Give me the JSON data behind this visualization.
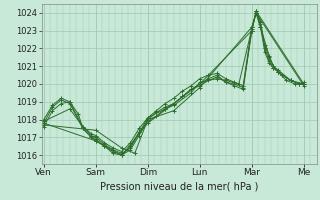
{
  "bg_color": "#c8e8d8",
  "plot_bg_color": "#c8e8d8",
  "grid_color": "#a0c8b0",
  "line_color": "#2d6e2d",
  "marker_color": "#2d6e2d",
  "title": "Pression niveau de la mer( hPa )",
  "ylim": [
    1015.5,
    1024.5
  ],
  "yticks": [
    1016,
    1017,
    1018,
    1019,
    1020,
    1021,
    1022,
    1023,
    1024
  ],
  "x_day_labels": [
    "Ven",
    "Sam",
    "Dim",
    "Lun",
    "Mar",
    "Me"
  ],
  "x_day_positions": [
    0,
    48,
    96,
    144,
    192,
    240
  ],
  "xlim": [
    -2,
    252
  ],
  "series": [
    [
      0,
      1017.8,
      8,
      1018.7,
      16,
      1019.1,
      24,
      1018.9,
      36,
      1017.5,
      44,
      1017.0,
      48,
      1016.8,
      56,
      1016.5,
      64,
      1016.2,
      72,
      1016.0,
      80,
      1016.5,
      88,
      1017.3,
      96,
      1017.9,
      104,
      1018.2,
      112,
      1018.6,
      120,
      1018.9,
      128,
      1019.3,
      136,
      1019.7,
      144,
      1020.0,
      152,
      1020.3,
      160,
      1020.5,
      168,
      1020.1,
      176,
      1019.9,
      184,
      1019.7,
      192,
      1023.0,
      196,
      1024.1,
      200,
      1023.5,
      204,
      1022.2,
      208,
      1021.5,
      212,
      1021.0,
      216,
      1020.7,
      220,
      1020.5,
      228,
      1020.2,
      236,
      1020.0,
      240,
      1020.0
    ],
    [
      0,
      1018.0,
      8,
      1018.8,
      16,
      1019.2,
      24,
      1019.0,
      36,
      1017.6,
      44,
      1017.2,
      48,
      1017.1,
      56,
      1016.7,
      64,
      1016.4,
      72,
      1016.2,
      80,
      1016.7,
      88,
      1017.5,
      96,
      1018.1,
      104,
      1018.5,
      112,
      1018.9,
      120,
      1019.2,
      128,
      1019.6,
      136,
      1019.9,
      144,
      1020.3,
      152,
      1020.5,
      160,
      1020.6,
      168,
      1020.3,
      176,
      1020.1,
      184,
      1019.9,
      192,
      1023.2,
      196,
      1024.0,
      200,
      1023.2,
      204,
      1021.8,
      208,
      1021.2,
      212,
      1020.9,
      216,
      1020.7,
      220,
      1020.5,
      228,
      1020.2,
      236,
      1020.0,
      240,
      1020.1
    ],
    [
      0,
      1017.8,
      48,
      1016.8,
      72,
      1016.0,
      96,
      1017.8,
      144,
      1020.0,
      192,
      1023.0,
      196,
      1024.1,
      240,
      1020.0
    ],
    [
      0,
      1017.7,
      48,
      1017.4,
      72,
      1016.4,
      84,
      1016.1,
      96,
      1018.0,
      120,
      1018.5,
      144,
      1019.8,
      192,
      1023.2,
      196,
      1024.0,
      240,
      1019.9
    ],
    [
      0,
      1017.9,
      24,
      1018.6,
      36,
      1017.6,
      44,
      1017.1,
      48,
      1017.0,
      56,
      1016.6,
      64,
      1016.3,
      72,
      1016.1,
      80,
      1016.4,
      96,
      1018.1,
      112,
      1018.6,
      120,
      1018.8,
      136,
      1019.5,
      144,
      1020.1,
      160,
      1020.3,
      168,
      1020.2,
      180,
      1020.0,
      192,
      1023.1,
      196,
      1024.0,
      200,
      1023.2,
      208,
      1021.6,
      212,
      1021.0,
      216,
      1020.8,
      228,
      1020.2,
      240,
      1020.0
    ],
    [
      0,
      1017.6,
      8,
      1018.5,
      16,
      1018.9,
      24,
      1019.0,
      32,
      1018.3,
      36,
      1017.5,
      44,
      1017.0,
      48,
      1016.9,
      56,
      1016.5,
      64,
      1016.1,
      72,
      1016.0,
      80,
      1016.3,
      88,
      1017.1,
      96,
      1018.0,
      104,
      1018.4,
      112,
      1018.7,
      120,
      1018.9,
      128,
      1019.3,
      136,
      1019.7,
      144,
      1019.9,
      152,
      1020.2,
      160,
      1020.4,
      168,
      1020.1,
      176,
      1020.0,
      184,
      1019.8,
      192,
      1023.0,
      196,
      1024.1,
      200,
      1023.4,
      204,
      1022.0,
      208,
      1021.3,
      212,
      1020.9,
      216,
      1020.7,
      224,
      1020.2,
      232,
      1020.0,
      240,
      1020.0
    ]
  ]
}
